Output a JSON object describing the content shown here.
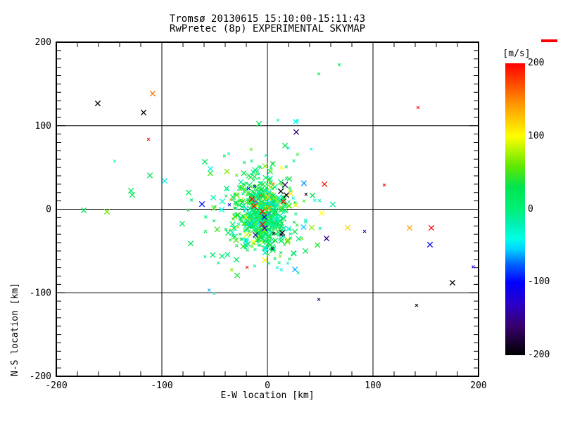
{
  "chart_data": {
    "type": "scatter",
    "title": "Tromsø 20130615 15:10:00-15:11:43",
    "subtitle": "RwPretec (8p) EXPERIMENTAL SKYMAP",
    "xlabel": "E-W location [km]",
    "ylabel": "N-S location [km]",
    "xlim": [
      -200,
      200
    ],
    "ylim": [
      -200,
      200
    ],
    "x_major_ticks": [
      -200,
      -100,
      0,
      100,
      200
    ],
    "y_major_ticks": [
      200,
      100,
      0,
      -100,
      -200
    ],
    "x_minor_step": 20,
    "y_minor_step": 10,
    "grid_x": [
      -100,
      0,
      100
    ],
    "grid_y": [
      -100,
      0,
      100
    ],
    "grid_on": true,
    "marker": "x",
    "colorbar": {
      "label": "[m/s]",
      "min": -200,
      "max": 200,
      "ticks": [
        200,
        100,
        0,
        -100,
        -200
      ]
    },
    "colormap_stops": [
      [
        -200,
        "#000000"
      ],
      [
        -160,
        "#38006e"
      ],
      [
        -130,
        "#2a00c8"
      ],
      [
        -100,
        "#0000ff"
      ],
      [
        -75,
        "#0064ff"
      ],
      [
        -55,
        "#00d2ff"
      ],
      [
        -40,
        "#00ffe6"
      ],
      [
        -20,
        "#00f0b4"
      ],
      [
        0,
        "#00f078"
      ],
      [
        30,
        "#00e450"
      ],
      [
        60,
        "#64e800"
      ],
      [
        100,
        "#ffff00"
      ],
      [
        140,
        "#ffa000"
      ],
      [
        170,
        "#ff5000"
      ],
      [
        200,
        "#ff0000"
      ]
    ],
    "points": [
      [
        -160.7,
        126.7,
        -200,
        "l"
      ],
      [
        -117.3,
        115.8,
        -200,
        "l"
      ],
      [
        -108.7,
        138.5,
        155,
        "l"
      ],
      [
        -112.7,
        83.8,
        200,
        "s"
      ],
      [
        -144.7,
        57.7,
        -30,
        "s"
      ],
      [
        -111.3,
        40.5,
        30,
        "l"
      ],
      [
        -97.3,
        34,
        -45,
        "l"
      ],
      [
        -174,
        -1.3,
        25,
        "l"
      ],
      [
        -152,
        -2.9,
        60,
        "l"
      ],
      [
        -129.3,
        22.2,
        20,
        "l"
      ],
      [
        -128,
        17.3,
        25,
        "l"
      ],
      [
        -74.7,
        20,
        15,
        "l"
      ],
      [
        -62,
        6.1,
        -100,
        "l"
      ],
      [
        -50.7,
        1.3,
        55,
        "l"
      ],
      [
        -43.3,
        -0.6,
        -40,
        "l"
      ],
      [
        -80.7,
        -17.3,
        20,
        "l"
      ],
      [
        -72,
        11,
        20,
        "s"
      ],
      [
        -59.3,
        56.8,
        20,
        "l"
      ],
      [
        -54,
        48.4,
        -35,
        "l"
      ],
      [
        -58.7,
        -26.6,
        20,
        "s"
      ],
      [
        -72.7,
        -41,
        20,
        "l"
      ],
      [
        -22,
        56,
        15,
        "s"
      ],
      [
        -15,
        58,
        20,
        "s"
      ],
      [
        -6.7,
        50.2,
        25,
        "s"
      ],
      [
        3.3,
        49.4,
        20,
        "s"
      ],
      [
        13.3,
        50,
        100,
        "s"
      ],
      [
        4.7,
        55,
        30,
        "s"
      ],
      [
        -8,
        102.3,
        25,
        "l"
      ],
      [
        26.7,
        104.8,
        -40,
        "l"
      ],
      [
        28.5,
        106,
        -45,
        "s"
      ],
      [
        27.3,
        92.4,
        -160,
        "l"
      ],
      [
        16.7,
        76.2,
        25,
        "l"
      ],
      [
        41.3,
        72,
        -40,
        "s"
      ],
      [
        48.7,
        162,
        20,
        "s"
      ],
      [
        68,
        173,
        25,
        "s"
      ],
      [
        142.7,
        121.7,
        200,
        "s"
      ],
      [
        54,
        30,
        195,
        "l"
      ],
      [
        42.7,
        16.4,
        25,
        "l"
      ],
      [
        36.5,
        18,
        -200,
        "s"
      ],
      [
        110.7,
        29,
        200,
        "s"
      ],
      [
        51.3,
        -4.6,
        100,
        "l"
      ],
      [
        42,
        -22,
        70,
        "l"
      ],
      [
        76,
        -22,
        120,
        "l"
      ],
      [
        92,
        -26.5,
        -120,
        "s"
      ],
      [
        56,
        -35,
        -150,
        "l"
      ],
      [
        36,
        -50,
        20,
        "l"
      ],
      [
        24.7,
        -52.6,
        20,
        "l"
      ],
      [
        134.7,
        -22.3,
        140,
        "l"
      ],
      [
        155.3,
        -22.3,
        200,
        "l"
      ],
      [
        154,
        -42.4,
        -100,
        "l"
      ],
      [
        175.3,
        -88,
        -200,
        "l"
      ],
      [
        141.3,
        -115,
        -200,
        "s"
      ],
      [
        48.7,
        -108,
        -170,
        "s"
      ],
      [
        -19.3,
        -69.5,
        195,
        "s"
      ],
      [
        195,
        -69,
        -110,
        "s"
      ],
      [
        -34.7,
        11.2,
        140,
        "s"
      ],
      [
        -36,
        5.3,
        -110,
        "s"
      ],
      [
        -14.7,
        12.2,
        200,
        "l"
      ],
      [
        -4.7,
        -2.9,
        195,
        "l"
      ],
      [
        12.7,
        21.5,
        -200,
        "l"
      ],
      [
        14,
        -28.2,
        -195,
        "l"
      ],
      [
        5.3,
        30.7,
        150,
        "s"
      ],
      [
        22,
        18.9,
        110,
        "l"
      ],
      [
        -12.7,
        3.8,
        200,
        "l"
      ],
      [
        -4.7,
        -18.1,
        195,
        "l"
      ]
    ],
    "cluster": {
      "seed": 1337,
      "groups": [
        {
          "count": 480,
          "cx": -4,
          "cy": -6,
          "sx": 12,
          "sy": 22,
          "v_mean": 20,
          "v_sigma": 26,
          "small_frac": 0.5
        },
        {
          "count": 130,
          "cx": -8,
          "cy": -2,
          "sx": 26,
          "sy": 36,
          "v_mean": 8,
          "v_sigma": 38,
          "small_frac": 0.6
        },
        {
          "count": 28,
          "cx": -3,
          "cy": -6,
          "sx": 13,
          "sy": 24,
          "v_mean": 0,
          "v_sigma": 150,
          "small_frac": 0.45
        }
      ]
    }
  },
  "decor": {
    "corner_mark_color": "#ff0000",
    "axis_color": "#000000",
    "background": "#ffffff"
  }
}
